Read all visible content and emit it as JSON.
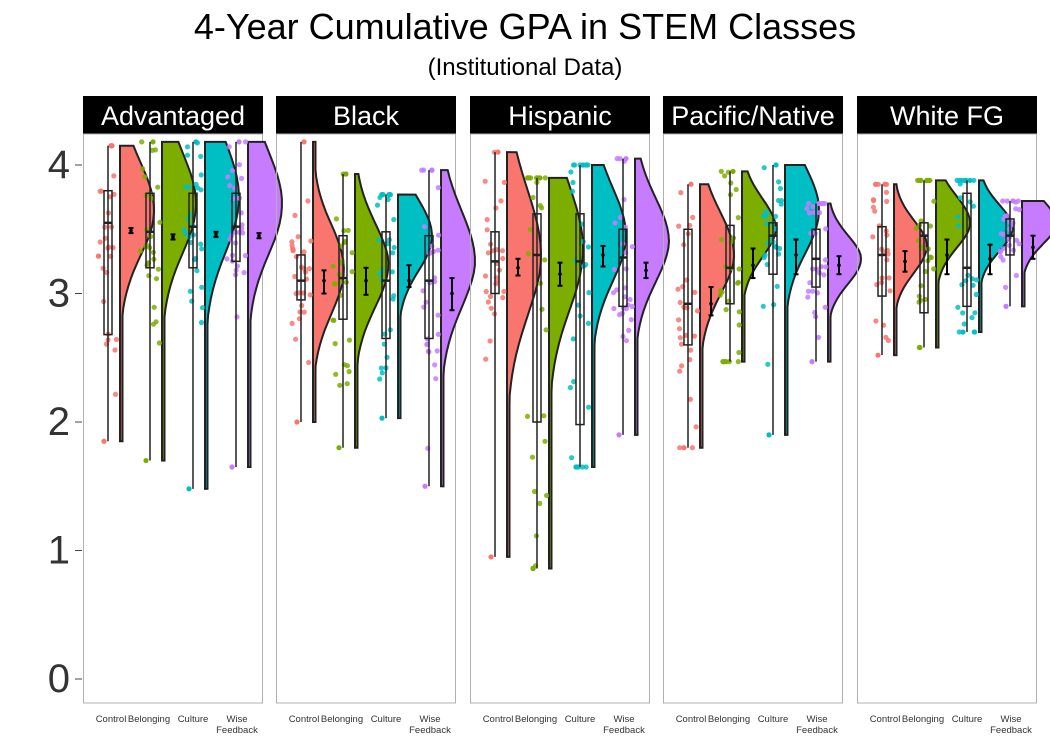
{
  "chart_data": {
    "type": "raincloud",
    "title": "4-Year Cumulative GPA in STEM Classes",
    "subtitle": "(Institutional Data)",
    "xlabel": "",
    "ylabel": "",
    "ylim": [
      0,
      4.2
    ],
    "yticks": [
      0,
      1,
      2,
      3,
      4
    ],
    "grid": false,
    "legend": "none",
    "categories": [
      "Control",
      "Belonging",
      "Culture",
      "Wise Feedback"
    ],
    "category_labels": [
      "Control",
      "Belonging",
      "Culture",
      "Wise\nFeedback"
    ],
    "colors": {
      "Control": "#F8766D",
      "Belonging": "#7CAE00",
      "Culture": "#00BFC4",
      "Wise Feedback": "#C77CFF"
    },
    "panels": [
      {
        "name": "Advantaged",
        "groups": [
          {
            "category": "Control",
            "min": 1.85,
            "max": 4.15,
            "q1": 2.68,
            "median": 3.55,
            "q3": 3.8,
            "mean": 3.49,
            "ci_low": 3.47,
            "ci_high": 3.51,
            "density_peak": 3.65
          },
          {
            "category": "Belonging",
            "min": 1.7,
            "max": 4.18,
            "q1": 3.2,
            "median": 3.48,
            "q3": 3.78,
            "mean": 3.44,
            "ci_low": 3.42,
            "ci_high": 3.46,
            "density_peak": 3.7
          },
          {
            "category": "Culture",
            "min": 1.48,
            "max": 4.18,
            "q1": 3.2,
            "median": 3.52,
            "q3": 3.78,
            "mean": 3.46,
            "ci_low": 3.44,
            "ci_high": 3.48,
            "density_peak": 3.75
          },
          {
            "category": "Wise Feedback",
            "min": 1.65,
            "max": 4.18,
            "q1": 3.25,
            "median": 3.52,
            "q3": 3.78,
            "mean": 3.45,
            "ci_low": 3.43,
            "ci_high": 3.47,
            "density_peak": 3.7
          }
        ]
      },
      {
        "name": "Black",
        "groups": [
          {
            "category": "Control",
            "min": 2.0,
            "max": 4.18,
            "q1": 2.95,
            "median": 3.1,
            "q3": 3.3,
            "mean": 3.1,
            "ci_low": 3.0,
            "ci_high": 3.18,
            "density_peak": 3.15
          },
          {
            "category": "Belonging",
            "min": 1.8,
            "max": 3.93,
            "q1": 2.8,
            "median": 3.12,
            "q3": 3.45,
            "mean": 3.1,
            "ci_low": 2.99,
            "ci_high": 3.2,
            "density_peak": 3.2
          },
          {
            "category": "Culture",
            "min": 2.03,
            "max": 3.77,
            "q1": 2.65,
            "median": 3.1,
            "q3": 3.48,
            "mean": 3.1,
            "ci_low": 3.05,
            "ci_high": 3.22,
            "density_peak": 3.45
          },
          {
            "category": "Wise Feedback",
            "min": 1.5,
            "max": 3.96,
            "q1": 2.65,
            "median": 3.1,
            "q3": 3.45,
            "mean": 3.0,
            "ci_low": 2.87,
            "ci_high": 3.12,
            "density_peak": 3.25
          }
        ]
      },
      {
        "name": "Hispanic",
        "groups": [
          {
            "category": "Control",
            "min": 0.95,
            "max": 4.1,
            "q1": 3.0,
            "median": 3.25,
            "q3": 3.48,
            "mean": 3.2,
            "ci_low": 3.14,
            "ci_high": 3.27,
            "density_peak": 3.3
          },
          {
            "category": "Belonging",
            "min": 0.86,
            "max": 3.9,
            "q1": 2.0,
            "median": 3.3,
            "q3": 3.62,
            "mean": 3.15,
            "ci_low": 3.06,
            "ci_high": 3.24,
            "density_peak": 3.35
          },
          {
            "category": "Culture",
            "min": 1.65,
            "max": 4.0,
            "q1": 1.98,
            "median": 3.25,
            "q3": 3.62,
            "mean": 3.3,
            "ci_low": 3.21,
            "ci_high": 3.37,
            "density_peak": 3.45
          },
          {
            "category": "Wise Feedback",
            "min": 1.9,
            "max": 4.05,
            "q1": 2.9,
            "median": 3.28,
            "q3": 3.5,
            "mean": 3.18,
            "ci_low": 3.12,
            "ci_high": 3.24,
            "density_peak": 3.4
          }
        ]
      },
      {
        "name": "Pacific/Native",
        "groups": [
          {
            "category": "Control",
            "min": 1.8,
            "max": 3.85,
            "q1": 2.6,
            "median": 2.92,
            "q3": 3.5,
            "mean": 2.92,
            "ci_low": 2.83,
            "ci_high": 3.05,
            "density_peak": 3.3
          },
          {
            "category": "Belonging",
            "min": 2.47,
            "max": 3.95,
            "q1": 2.92,
            "median": 3.2,
            "q3": 3.53,
            "mean": 3.22,
            "ci_low": 3.12,
            "ci_high": 3.35,
            "density_peak": 3.5
          },
          {
            "category": "Culture",
            "min": 1.9,
            "max": 4.0,
            "q1": 3.15,
            "median": 3.45,
            "q3": 3.55,
            "mean": 3.3,
            "ci_low": 3.15,
            "ci_high": 3.42,
            "density_peak": 3.65
          },
          {
            "category": "Wise Feedback",
            "min": 2.47,
            "max": 3.7,
            "q1": 3.05,
            "median": 3.27,
            "q3": 3.5,
            "mean": 3.22,
            "ci_low": 3.15,
            "ci_high": 3.29,
            "density_peak": 3.25
          }
        ]
      },
      {
        "name": "White FG",
        "groups": [
          {
            "category": "Control",
            "min": 2.52,
            "max": 3.85,
            "q1": 2.98,
            "median": 3.3,
            "q3": 3.52,
            "mean": 3.25,
            "ci_low": 3.17,
            "ci_high": 3.33,
            "density_peak": 3.35
          },
          {
            "category": "Belonging",
            "min": 2.58,
            "max": 3.88,
            "q1": 2.85,
            "median": 3.45,
            "q3": 3.55,
            "mean": 3.3,
            "ci_low": 3.15,
            "ci_high": 3.42,
            "density_peak": 3.55
          },
          {
            "category": "Culture",
            "min": 2.7,
            "max": 3.88,
            "q1": 2.9,
            "median": 3.2,
            "q3": 3.78,
            "mean": 3.27,
            "ci_low": 3.15,
            "ci_high": 3.38,
            "density_peak": 3.5
          },
          {
            "category": "Wise Feedback",
            "min": 2.9,
            "max": 3.72,
            "q1": 3.3,
            "median": 3.45,
            "q3": 3.58,
            "mean": 3.36,
            "ci_low": 3.27,
            "ci_high": 3.45,
            "density_peak": 3.55
          }
        ]
      }
    ]
  }
}
